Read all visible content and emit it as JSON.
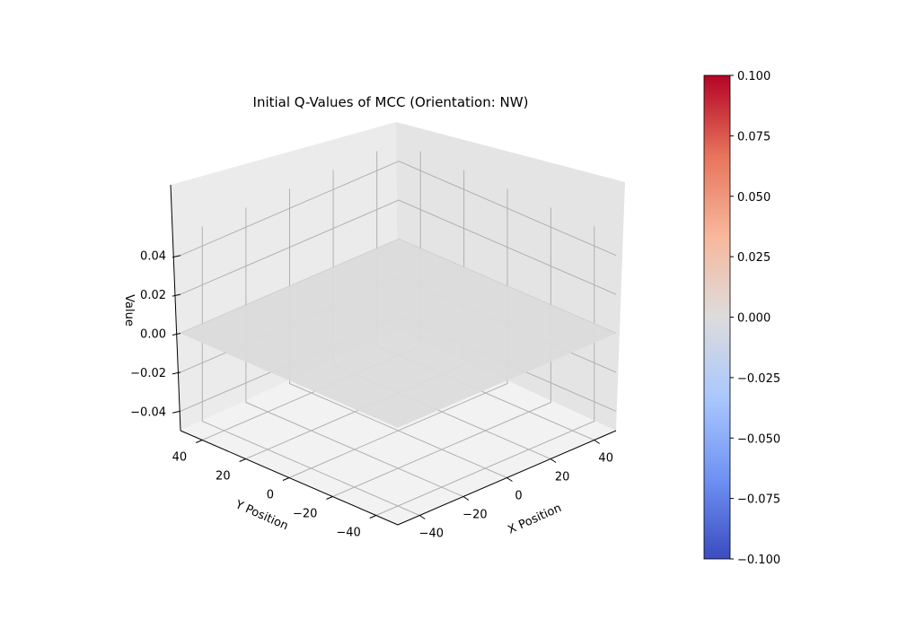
{
  "chart_data": {
    "type": "surface",
    "title": "Initial Q-Values of MCC (Orientation: NW)",
    "xlabel": "X Position",
    "ylabel": "Y Position",
    "zlabel": "Value",
    "x_ticks": [
      "−40",
      "−20",
      "0",
      "20",
      "40"
    ],
    "y_ticks": [
      "−40",
      "−20",
      "0",
      "20",
      "40"
    ],
    "z_ticks": [
      "−0.04",
      "−0.02",
      "0.00",
      "0.02",
      "0.04"
    ],
    "x_range": [
      -50,
      50
    ],
    "y_range": [
      -50,
      50
    ],
    "z_range": [
      -0.05,
      0.05
    ],
    "surface": {
      "x_range": [
        -50,
        50
      ],
      "y_range": [
        -50,
        50
      ],
      "value": 0.0
    },
    "colorbar": {
      "cmap": "coolwarm",
      "ticks": [
        "0.100",
        "0.075",
        "0.050",
        "0.025",
        "0.000",
        "−0.025",
        "−0.050",
        "−0.075",
        "−0.100"
      ],
      "range": [
        -0.1,
        0.1
      ],
      "colors": [
        "#3b4cc0",
        "#6f92f3",
        "#aac7fd",
        "#dddcdc",
        "#f7b89c",
        "#e7745b",
        "#b40426"
      ]
    },
    "grid": true,
    "view": "elevation-view-from-nw"
  }
}
